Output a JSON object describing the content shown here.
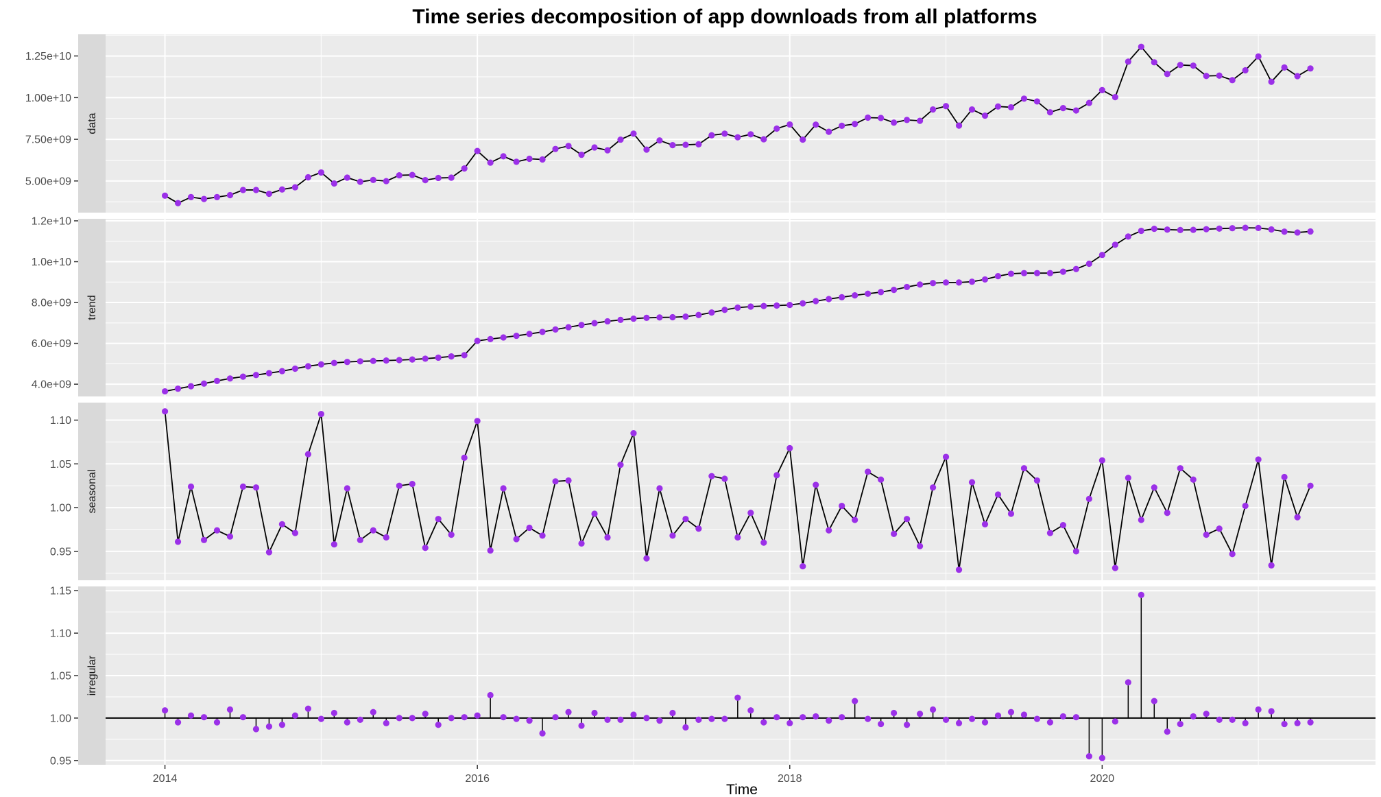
{
  "chart_data": {
    "type": "line",
    "title": "Time series decomposition of app downloads from all platforms",
    "xlabel": "Time",
    "x_ticks": [
      "2014",
      "2016",
      "2018",
      "2020"
    ],
    "x_tick_values": [
      2014,
      2016,
      2018,
      2020
    ],
    "x_range": [
      2013.62,
      2021.75
    ],
    "start": 2014,
    "frequency": 12,
    "colors": {
      "points": "#9b30e8",
      "line": "#000000",
      "panel_bg": "#ebebeb",
      "strip_bg": "#d9d9d9",
      "grid": "#ffffff"
    },
    "panels": [
      {
        "name": "data",
        "ylim": [
          3100000000,
          13800000000
        ],
        "y_ticks": [
          5000000000,
          7500000000,
          10000000000,
          12500000000
        ],
        "y_tick_labels": [
          "5.00e+09",
          "7.50e+09",
          "1.00e+10",
          "1.25e+10"
        ],
        "style": "line",
        "values": [
          4120000000,
          3670000000,
          4030000000,
          3920000000,
          4030000000,
          4150000000,
          4460000000,
          4460000000,
          4230000000,
          4490000000,
          4620000000,
          5220000000,
          5510000000,
          4850000000,
          5200000000,
          4950000000,
          5060000000,
          4990000000,
          5340000000,
          5360000000,
          5050000000,
          5180000000,
          5200000000,
          5750000000,
          6800000000,
          6100000000,
          6480000000,
          6150000000,
          6330000000,
          6290000000,
          6920000000,
          7100000000,
          6570000000,
          7010000000,
          6840000000,
          7480000000,
          7840000000,
          6880000000,
          7430000000,
          7150000000,
          7170000000,
          7200000000,
          7740000000,
          7840000000,
          7620000000,
          7800000000,
          7500000000,
          8140000000,
          8390000000,
          7480000000,
          8380000000,
          7950000000,
          8310000000,
          8420000000,
          8800000000,
          8780000000,
          8500000000,
          8660000000,
          8610000000,
          9290000000,
          9490000000,
          8320000000,
          9290000000,
          8920000000,
          9470000000,
          9420000000,
          9940000000,
          9770000000,
          9120000000,
          9370000000,
          9230000000,
          9680000000,
          10450000000,
          10030000000,
          12160000000,
          13050000000,
          12120000000,
          11420000000,
          11960000000,
          11920000000,
          11300000000,
          11320000000,
          11050000000,
          11640000000,
          12470000000,
          10950000000,
          11810000000,
          11290000000,
          11750000000
        ]
      },
      {
        "name": "trend",
        "ylim": [
          3400000000,
          12100000000
        ],
        "y_ticks": [
          4000000000,
          6000000000,
          8000000000,
          10000000000,
          12000000000
        ],
        "y_tick_labels": [
          "4.0e+09",
          "6.0e+09",
          "8.0e+09",
          "1.0e+10",
          "1.2e+10"
        ],
        "style": "line",
        "values": [
          3650000000,
          3780000000,
          3900000000,
          4030000000,
          4160000000,
          4280000000,
          4370000000,
          4450000000,
          4540000000,
          4640000000,
          4760000000,
          4880000000,
          4970000000,
          5040000000,
          5090000000,
          5120000000,
          5140000000,
          5160000000,
          5180000000,
          5210000000,
          5250000000,
          5300000000,
          5360000000,
          5420000000,
          6120000000,
          6210000000,
          6290000000,
          6370000000,
          6460000000,
          6560000000,
          6680000000,
          6790000000,
          6900000000,
          6990000000,
          7080000000,
          7150000000,
          7210000000,
          7250000000,
          7270000000,
          7280000000,
          7310000000,
          7390000000,
          7510000000,
          7640000000,
          7750000000,
          7800000000,
          7830000000,
          7850000000,
          7880000000,
          7960000000,
          8070000000,
          8170000000,
          8260000000,
          8350000000,
          8430000000,
          8510000000,
          8620000000,
          8760000000,
          8880000000,
          8950000000,
          8980000000,
          8980000000,
          9020000000,
          9130000000,
          9290000000,
          9410000000,
          9440000000,
          9440000000,
          9440000000,
          9510000000,
          9640000000,
          9900000000,
          10330000000,
          10830000000,
          11230000000,
          11510000000,
          11610000000,
          11570000000,
          11550000000,
          11560000000,
          11590000000,
          11620000000,
          11640000000,
          11660000000,
          11650000000,
          11580000000,
          11470000000,
          11430000000,
          11480000000
        ]
      },
      {
        "name": "seasonal",
        "ylim": [
          0.917,
          1.12
        ],
        "y_ticks": [
          0.95,
          1.0,
          1.05,
          1.1
        ],
        "y_tick_labels": [
          "0.95",
          "1.00",
          "1.05",
          "1.10"
        ],
        "style": "line",
        "values": [
          1.11,
          0.961,
          1.024,
          0.963,
          0.974,
          0.967,
          1.024,
          1.023,
          0.949,
          0.981,
          0.971,
          1.061,
          1.107,
          0.958,
          1.022,
          0.963,
          0.974,
          0.966,
          1.025,
          1.027,
          0.954,
          0.987,
          0.969,
          1.057,
          1.099,
          0.951,
          1.022,
          0.964,
          0.977,
          0.968,
          1.03,
          1.031,
          0.959,
          0.993,
          0.966,
          1.049,
          1.085,
          0.942,
          1.022,
          0.968,
          0.987,
          0.976,
          1.036,
          1.033,
          0.966,
          0.994,
          0.96,
          1.037,
          1.068,
          0.933,
          1.026,
          0.974,
          1.002,
          0.986,
          1.041,
          1.032,
          0.97,
          0.987,
          0.956,
          1.023,
          1.058,
          0.929,
          1.029,
          0.981,
          1.015,
          0.993,
          1.045,
          1.031,
          0.971,
          0.98,
          0.95,
          1.01,
          1.054,
          0.931,
          1.034,
          0.986,
          1.023,
          0.994,
          1.045,
          1.032,
          0.969,
          0.976,
          0.947,
          1.002,
          1.055,
          0.934,
          1.035,
          0.989,
          1.025
        ]
      },
      {
        "name": "irregular",
        "ylim": [
          0.945,
          1.155
        ],
        "y_ticks": [
          0.95,
          1.0,
          1.05,
          1.1,
          1.15
        ],
        "y_tick_labels": [
          "0.95",
          "1.00",
          "1.05",
          "1.10",
          "1.15"
        ],
        "style": "segments",
        "baseline": 1.0,
        "values": [
          1.009,
          0.995,
          1.003,
          1.001,
          0.995,
          1.01,
          1.001,
          0.987,
          0.99,
          0.992,
          1.003,
          1.011,
          0.999,
          1.006,
          0.995,
          0.998,
          1.007,
          0.994,
          1.0,
          1.0,
          1.005,
          0.992,
          1.0,
          1.001,
          1.003,
          1.027,
          1.001,
          0.999,
          0.997,
          0.982,
          1.001,
          1.007,
          0.991,
          1.006,
          0.998,
          0.998,
          1.004,
          1.0,
          0.997,
          1.006,
          0.989,
          0.998,
          0.999,
          0.999,
          1.024,
          1.009,
          0.995,
          1.001,
          0.994,
          1.001,
          1.002,
          0.997,
          1.001,
          1.02,
          0.999,
          0.993,
          1.006,
          0.992,
          1.005,
          1.01,
          0.998,
          0.994,
          0.999,
          0.995,
          1.003,
          1.007,
          1.004,
          0.999,
          0.995,
          1.002,
          1.001,
          0.955,
          0.953,
          0.996,
          1.042,
          1.145,
          1.02,
          0.984,
          0.993,
          1.002,
          1.005,
          0.998,
          0.998,
          0.994,
          1.01,
          1.008,
          0.993,
          0.994,
          0.995
        ]
      }
    ]
  }
}
